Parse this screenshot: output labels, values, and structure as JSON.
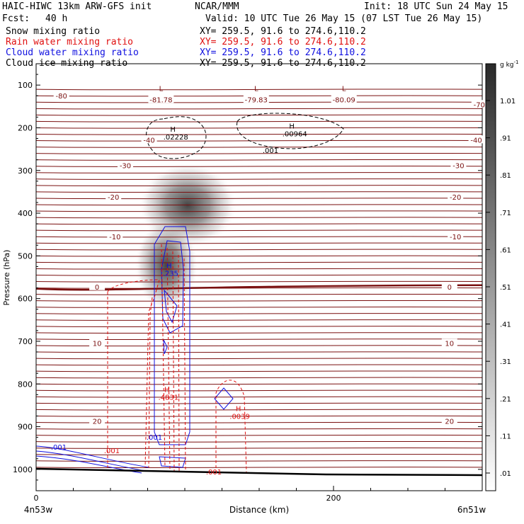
{
  "header": {
    "model": "HAIC-HIWC 13km ARW-GFS init",
    "org": "NCAR/MMM",
    "init": "Init: 18 UTC Sun 24 May 15",
    "fcst_label": "Fcst:",
    "fcst_value": "40 h",
    "valid": "Valid: 10 UTC Tue 26 May 15 (07 LST Tue 26 May 15)"
  },
  "legend": [
    {
      "name": "Snow mixing ratio",
      "xy": "XY= 259.5, 91.6 to 274.6,110.2",
      "color": "#000000"
    },
    {
      "name": "Rain water mixing ratio",
      "xy": "XY= 259.5, 91.6 to 274.6,110.2",
      "color": "#e01010"
    },
    {
      "name": "Cloud water mixing ratio",
      "xy": "XY= 259.5, 91.6 to 274.6,110.2",
      "color": "#1010e0"
    },
    {
      "name": "Cloud ice mixing ratio",
      "xy": "XY= 259.5, 91.6 to 274.6,110.2",
      "color": "#000000"
    }
  ],
  "chart_data": {
    "type": "contour cross-section",
    "xlabel": "Distance (km)",
    "ylabel": "Pressure (hPa)",
    "x_ticks": [
      0,
      200
    ],
    "x_end_labels": [
      "4n53w",
      "6n51w"
    ],
    "y_ticks": [
      100,
      200,
      300,
      400,
      500,
      600,
      700,
      800,
      900,
      1000
    ],
    "xlim": [
      0,
      300
    ],
    "ylim": [
      1050,
      50
    ],
    "colorbar": {
      "unit_base": "g kg",
      "unit_exp": "-1",
      "labels": [
        "1.01",
        ".91",
        ".81",
        ".71",
        ".61",
        ".51",
        ".41",
        ".31",
        ".21",
        ".11",
        ".01"
      ]
    },
    "temperature_contours": [
      {
        "label": "-80",
        "p": 125,
        "labels_x": [
          17
        ]
      },
      {
        "label": "-70",
        "p": 145,
        "labels_x": [
          298
        ]
      },
      {
        "label": "-40",
        "p": 228,
        "labels_x": [
          76,
          296
        ]
      },
      {
        "label": "-30",
        "p": 288,
        "labels_x": [
          60,
          284
        ]
      },
      {
        "label": "-20",
        "p": 362,
        "labels_x": [
          52,
          282
        ]
      },
      {
        "label": "-10",
        "p": 455,
        "labels_x": [
          53,
          282
        ]
      },
      {
        "label": "0",
        "p": 572,
        "labels_x": [
          41,
          278
        ],
        "bold": true
      },
      {
        "label": "10",
        "p": 704,
        "labels_x": [
          41,
          278
        ]
      },
      {
        "label": "20",
        "p": 887,
        "labels_x": [
          41,
          278
        ]
      }
    ],
    "temperature_extrema": [
      {
        "mark": "L",
        "value": "-81.78",
        "x": 84,
        "p": 107
      },
      {
        "mark": "L",
        "value": "-79.83",
        "x": 148,
        "p": 107
      },
      {
        "mark": "L",
        "value": "-80.09",
        "x": 207,
        "p": 107
      }
    ],
    "snow_extrema": [
      {
        "mark": "H",
        "value": ".02228",
        "x": 92,
        "p": 209
      },
      {
        "mark": "H",
        "value": ".00964",
        "x": 172,
        "p": 202
      }
    ],
    "snow_contour_labels": [
      ".001"
    ],
    "cloud_water_extrema": [
      {
        "mark": "H",
        "value": ".235",
        "x": 88,
        "p": 538
      }
    ],
    "cloud_water_contour_labels": [
      ".001",
      ".001"
    ],
    "rain_extrema": [
      {
        "mark": "H",
        "value": ".4831",
        "x": 88,
        "p": 835
      },
      {
        "mark": "H",
        "value": ".0039",
        "x": 136,
        "p": 880
      }
    ],
    "rain_contour_labels": [
      ".001",
      ".001"
    ]
  }
}
